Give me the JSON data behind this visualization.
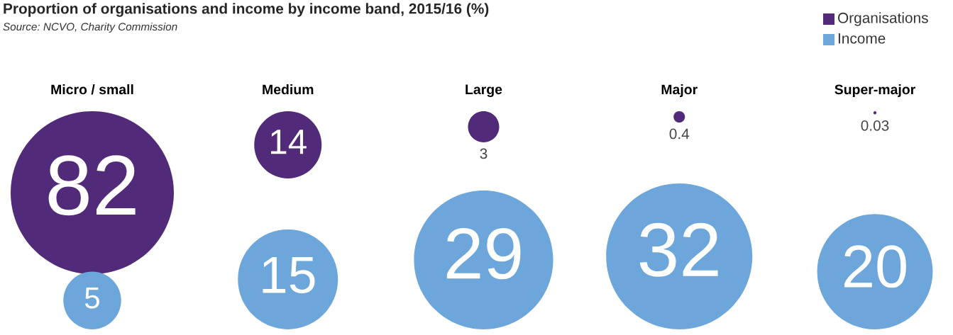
{
  "chart_data": {
    "type": "other",
    "title": "Proportion of organisations and income by income band, 2015/16 (%)",
    "annotations": [
      "Source: NCVO, Charity Commission"
    ],
    "categories": [
      "Micro / small",
      "Medium",
      "Large",
      "Major",
      "Super-major"
    ],
    "series": [
      {
        "name": "Organisations",
        "color": "#522a7a",
        "values": [
          82,
          14,
          3,
          0.4,
          0.03
        ]
      },
      {
        "name": "Income",
        "color": "#6ca6da",
        "values": [
          5,
          15,
          29,
          32,
          20
        ]
      }
    ],
    "legend": "top right",
    "data_labels": true
  }
}
